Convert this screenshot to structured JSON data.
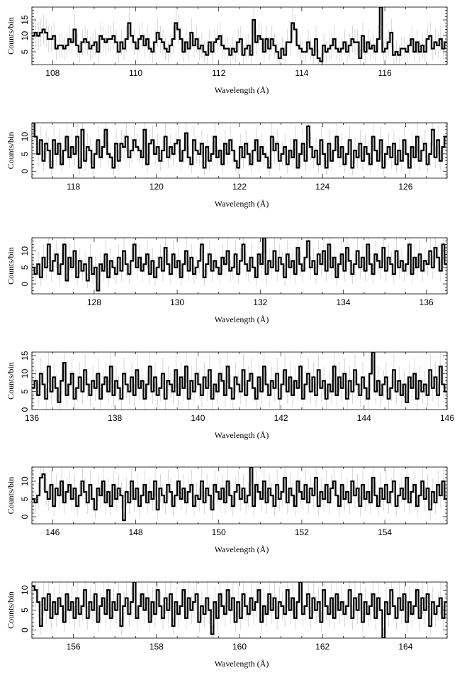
{
  "chart_data": [
    {
      "type": "histogram-step",
      "xlabel": "Wavelength (Å)",
      "ylabel": "Counts/bin",
      "xlim": [
        107.5,
        117.5
      ],
      "ylim": [
        1,
        19
      ],
      "xticks": [
        108,
        110,
        112,
        114,
        116
      ],
      "yticks": [
        5,
        10,
        15
      ],
      "bins": 160,
      "counts": [
        10,
        11,
        10,
        11,
        12,
        11,
        9,
        9,
        10,
        6,
        7,
        7,
        6,
        7,
        9,
        8,
        12,
        7,
        5,
        8,
        9,
        8,
        6,
        7,
        8,
        5,
        10,
        9,
        8,
        9,
        9,
        10,
        8,
        5,
        8,
        6,
        9,
        14,
        10,
        8,
        6,
        9,
        10,
        7,
        9,
        6,
        5,
        8,
        11,
        9,
        8,
        6,
        5,
        7,
        9,
        14,
        12,
        9,
        5,
        8,
        6,
        11,
        7,
        9,
        6,
        7,
        5,
        4,
        8,
        5,
        8,
        9,
        10,
        7,
        6,
        6,
        4,
        6,
        5,
        8,
        9,
        4,
        6,
        7,
        4,
        15,
        8,
        10,
        9,
        5,
        9,
        6,
        9,
        7,
        5,
        3,
        6,
        4,
        8,
        8,
        14,
        12,
        7,
        6,
        5,
        5,
        8,
        6,
        4,
        9,
        3,
        2,
        7,
        5,
        6,
        7,
        9,
        6,
        5,
        6,
        8,
        5,
        7,
        9,
        8,
        8,
        3,
        10,
        5,
        8,
        6,
        7,
        5,
        9,
        19,
        5,
        6,
        8,
        11,
        4,
        5,
        4,
        6,
        6,
        5,
        7,
        9,
        5,
        8,
        5,
        7,
        5,
        9,
        10,
        6,
        8,
        7,
        9,
        6,
        8
      ],
      "grid": false
    },
    {
      "type": "histogram-step",
      "xlabel": "Wavelength (Å)",
      "ylabel": "Counts/bin",
      "xlim": [
        117,
        127
      ],
      "ylim": [
        -2,
        14
      ],
      "xticks": [
        118,
        120,
        122,
        124,
        126
      ],
      "yticks": [
        0,
        5,
        10
      ],
      "bins": 160,
      "counts": [
        14,
        10,
        5,
        9,
        3,
        8,
        6,
        1,
        9,
        5,
        8,
        2,
        6,
        10,
        4,
        7,
        5,
        10,
        1,
        12,
        3,
        7,
        6,
        1,
        5,
        9,
        4,
        7,
        12,
        5,
        4,
        1,
        8,
        3,
        8,
        7,
        10,
        4,
        6,
        9,
        7,
        6,
        4,
        12,
        2,
        8,
        9,
        5,
        7,
        3,
        6,
        10,
        4,
        7,
        5,
        8,
        9,
        3,
        6,
        11,
        4,
        2,
        9,
        6,
        5,
        8,
        1,
        7,
        3,
        5,
        10,
        4,
        6,
        2,
        8,
        5,
        9,
        6,
        3,
        1,
        7,
        4,
        8,
        5,
        2,
        6,
        9,
        3,
        7,
        5,
        4,
        1,
        10,
        6,
        8,
        3,
        5,
        7,
        2,
        6,
        4,
        9,
        1,
        5,
        8,
        3,
        13,
        7,
        4,
        6,
        2,
        9,
        5,
        1,
        8,
        3,
        6,
        10,
        4,
        7,
        2,
        5,
        9,
        1,
        6,
        4,
        8,
        3,
        7,
        5,
        2,
        10,
        6,
        3,
        9,
        1,
        5,
        7,
        4,
        8,
        2,
        6,
        3,
        9,
        5,
        1,
        7,
        4,
        10,
        3,
        6,
        8,
        2,
        5,
        12,
        4,
        9,
        3,
        7,
        10
      ],
      "grid": false
    },
    {
      "type": "histogram-step",
      "xlabel": "Wavelength (Å)",
      "ylabel": "Counts/bin",
      "xlim": [
        126.5,
        136.5
      ],
      "ylim": [
        -3,
        14
      ],
      "xticks": [
        128,
        130,
        132,
        134,
        136
      ],
      "yticks": [
        0,
        5,
        10
      ],
      "bins": 160,
      "counts": [
        5,
        3,
        6,
        2,
        8,
        5,
        12,
        4,
        7,
        9,
        3,
        6,
        12,
        1,
        8,
        5,
        10,
        2,
        7,
        4,
        6,
        1,
        8,
        3,
        5,
        -2,
        6,
        4,
        9,
        2,
        7,
        5,
        3,
        8,
        4,
        10,
        6,
        3,
        7,
        12,
        5,
        8,
        4,
        6,
        9,
        3,
        7,
        2,
        5,
        8,
        4,
        11,
        6,
        3,
        9,
        5,
        7,
        2,
        6,
        10,
        4,
        8,
        3,
        5,
        7,
        12,
        2,
        6,
        9,
        4,
        7,
        5,
        3,
        8,
        6,
        10,
        4,
        5,
        9,
        3,
        7,
        12,
        6,
        4,
        8,
        5,
        2,
        9,
        6,
        14,
        3,
        7,
        5,
        10,
        4,
        8,
        6,
        2,
        9,
        5,
        7,
        3,
        11,
        6,
        4,
        8,
        13,
        5,
        7,
        3,
        9,
        6,
        10,
        4,
        12,
        5,
        8,
        2,
        6,
        9,
        4,
        11,
        7,
        3,
        6,
        10,
        5,
        8,
        4,
        12,
        6,
        3,
        9,
        7,
        5,
        11,
        4,
        8,
        6,
        3,
        10,
        5,
        7,
        4,
        6,
        12,
        3,
        8,
        5,
        9,
        4,
        7,
        6,
        10,
        5,
        11,
        8,
        4,
        12,
        6
      ],
      "grid": false
    },
    {
      "type": "histogram-step",
      "xlabel": "Wavelength (Å)",
      "ylabel": "Counts/bin",
      "xlim": [
        136,
        146
      ],
      "ylim": [
        0,
        16
      ],
      "xticks": [
        136,
        138,
        140,
        142,
        144,
        146
      ],
      "yticks": [
        0,
        5,
        10,
        15
      ],
      "bins": 160,
      "counts": [
        6,
        8,
        4,
        10,
        7,
        3,
        12,
        5,
        9,
        6,
        2,
        8,
        13,
        4,
        7,
        10,
        3,
        6,
        9,
        5,
        11,
        7,
        4,
        8,
        6,
        10,
        3,
        7,
        9,
        5,
        12,
        4,
        8,
        6,
        3,
        10,
        7,
        5,
        9,
        4,
        11,
        6,
        8,
        3,
        7,
        12,
        5,
        9,
        4,
        6,
        10,
        3,
        8,
        7,
        5,
        11,
        4,
        9,
        6,
        12,
        3,
        8,
        5,
        10,
        7,
        4,
        9,
        6,
        11,
        3,
        7,
        5,
        10,
        8,
        4,
        12,
        6,
        3,
        9,
        7,
        5,
        11,
        4,
        8,
        10,
        6,
        3,
        9,
        5,
        12,
        7,
        4,
        8,
        6,
        10,
        3,
        7,
        11,
        5,
        9,
        4,
        8,
        6,
        12,
        3,
        7,
        10,
        5,
        9,
        4,
        11,
        6,
        8,
        3,
        7,
        5,
        12,
        4,
        9,
        6,
        10,
        3,
        8,
        5,
        11,
        7,
        4,
        9,
        6,
        3,
        10,
        16,
        5,
        8,
        4,
        7,
        9,
        3,
        6,
        11,
        5,
        8,
        4,
        7,
        2,
        9,
        6,
        10,
        3,
        8,
        5,
        7,
        4,
        11,
        6,
        9,
        4,
        12,
        7,
        5
      ],
      "grid": false
    },
    {
      "type": "histogram-step",
      "xlabel": "Wavelength (Å)",
      "ylabel": "Counts/bin",
      "xlim": [
        145.5,
        155.5
      ],
      "ylim": [
        -2,
        14
      ],
      "xticks": [
        146,
        148,
        150,
        152,
        154
      ],
      "yticks": [
        0,
        5,
        10
      ],
      "bins": 160,
      "counts": [
        5,
        4,
        6,
        11,
        12,
        7,
        5,
        9,
        3,
        8,
        6,
        10,
        4,
        7,
        9,
        5,
        8,
        3,
        6,
        10,
        7,
        4,
        9,
        5,
        2,
        8,
        6,
        10,
        4,
        7,
        3,
        9,
        5,
        8,
        6,
        -1,
        7,
        4,
        10,
        5,
        8,
        3,
        6,
        9,
        4,
        7,
        5,
        10,
        2,
        8,
        6,
        4,
        9,
        7,
        3,
        6,
        10,
        5,
        8,
        4,
        7,
        9,
        3,
        6,
        5,
        10,
        4,
        8,
        6,
        2,
        9,
        7,
        5,
        8,
        4,
        10,
        6,
        3,
        7,
        9,
        5,
        8,
        4,
        6,
        14,
        3,
        9,
        7,
        5,
        10,
        4,
        8,
        6,
        3,
        9,
        5,
        7,
        11,
        4,
        8,
        6,
        3,
        10,
        7,
        5,
        9,
        4,
        8,
        6,
        11,
        3,
        7,
        5,
        9,
        4,
        8,
        10,
        6,
        3,
        9,
        5,
        7,
        4,
        10,
        6,
        8,
        3,
        9,
        5,
        7,
        4,
        11,
        6,
        3,
        8,
        5,
        9,
        4,
        7,
        10,
        3,
        6,
        8,
        5,
        11,
        4,
        7,
        9,
        3,
        6,
        10,
        5,
        8,
        2,
        7,
        4,
        9,
        6,
        10,
        5
      ],
      "grid": false
    },
    {
      "type": "histogram-step",
      "xlabel": "Wavelength (Å)",
      "ylabel": "Counts/bin",
      "xlim": [
        155,
        165
      ],
      "ylim": [
        -2,
        12
      ],
      "xticks": [
        156,
        158,
        160,
        162,
        164
      ],
      "yticks": [
        0,
        5,
        10
      ],
      "bins": 160,
      "counts": [
        11,
        10,
        7,
        1,
        8,
        5,
        9,
        3,
        7,
        4,
        8,
        6,
        2,
        9,
        5,
        7,
        3,
        8,
        4,
        6,
        10,
        3,
        7,
        5,
        9,
        2,
        6,
        8,
        4,
        10,
        3,
        7,
        5,
        9,
        1,
        6,
        8,
        4,
        7,
        12,
        3,
        6,
        9,
        5,
        8,
        2,
        7,
        4,
        10,
        6,
        3,
        8,
        5,
        9,
        1,
        7,
        4,
        6,
        10,
        3,
        8,
        5,
        7,
        9,
        2,
        6,
        4,
        8,
        5,
        -1,
        7,
        3,
        9,
        6,
        4,
        10,
        5,
        8,
        2,
        7,
        3,
        9,
        6,
        4,
        8,
        5,
        7,
        10,
        2,
        6,
        4,
        9,
        5,
        8,
        3,
        7,
        6,
        4,
        10,
        5,
        8,
        3,
        7,
        12,
        4,
        6,
        9,
        3,
        8,
        5,
        7,
        2,
        10,
        6,
        4,
        8,
        3,
        9,
        5,
        7,
        4,
        6,
        10,
        3,
        8,
        5,
        9,
        2,
        7,
        4,
        6,
        9,
        3,
        8,
        5,
        -2,
        7,
        4,
        10,
        6,
        3,
        8,
        5,
        9,
        2,
        7,
        4,
        6,
        10,
        3,
        8,
        5,
        9,
        1,
        7,
        4,
        6,
        8,
        3,
        7
      ],
      "grid": false
    }
  ]
}
